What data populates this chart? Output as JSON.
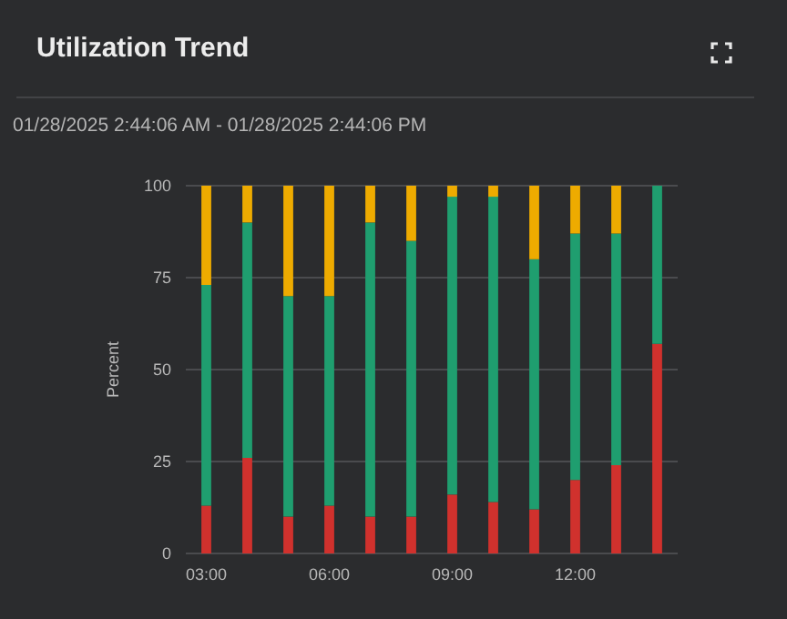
{
  "chart_data": {
    "type": "bar",
    "title": "Utilization Trend",
    "subtitle": "01/28/2025 2:44:06 AM - 01/28/2025 2:44:06 PM",
    "ylabel": "Percent",
    "categories": [
      "03:00",
      null,
      null,
      "06:00",
      null,
      null,
      "09:00",
      null,
      null,
      "12:00",
      null,
      null
    ],
    "stacked": true,
    "series": [
      {
        "color": "#d0312d",
        "values": [
          13,
          26,
          10,
          13,
          10,
          10,
          16,
          14,
          12,
          20,
          24,
          57
        ]
      },
      {
        "color": "#1f9e6f",
        "values": [
          60,
          64,
          60,
          57,
          80,
          75,
          81,
          83,
          68,
          67,
          63,
          43
        ]
      },
      {
        "color": "#eeab00",
        "values": [
          27,
          10,
          30,
          30,
          10,
          15,
          3,
          3,
          20,
          13,
          13,
          0
        ]
      }
    ],
    "ylim": [
      0,
      100
    ],
    "yticks": [
      0,
      25,
      50,
      75,
      100
    ],
    "grid": "y"
  }
}
